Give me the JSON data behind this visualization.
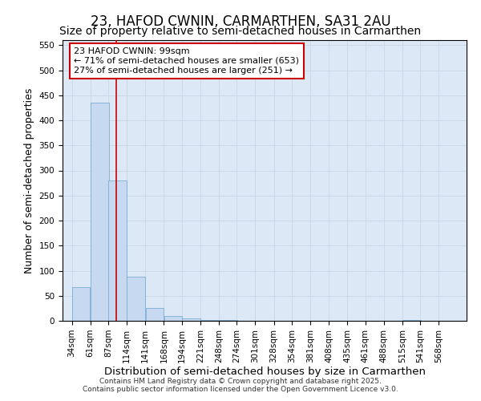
{
  "title": "23, HAFOD CWNIN, CARMARTHEN, SA31 2AU",
  "subtitle": "Size of property relative to semi-detached houses in Carmarthen",
  "xlabel": "Distribution of semi-detached houses by size in Carmarthen",
  "ylabel": "Number of semi-detached properties",
  "bins": [
    34,
    61,
    87,
    114,
    141,
    168,
    194,
    221,
    248,
    274,
    301,
    328,
    354,
    381,
    408,
    435,
    461,
    488,
    515,
    541,
    568
  ],
  "bar_heights": [
    68,
    435,
    280,
    88,
    25,
    10,
    5,
    2,
    1,
    0,
    0,
    0,
    0,
    0,
    0,
    0,
    0,
    0,
    2,
    0,
    0
  ],
  "bar_color": "#c6d9f0",
  "bar_edge_color": "#7aadd4",
  "grid_color": "#c8d8ea",
  "background_color": "#dce8f5",
  "property_size": 99,
  "red_line_color": "#cc0000",
  "annotation_line1": "23 HAFOD CWNIN: 99sqm",
  "annotation_line2": "← 71% of semi-detached houses are smaller (653)",
  "annotation_line3": "27% of semi-detached houses are larger (251) →",
  "annotation_box_color": "#ffffff",
  "annotation_border_color": "#cc0000",
  "ylim": [
    0,
    560
  ],
  "yticks": [
    0,
    50,
    100,
    150,
    200,
    250,
    300,
    350,
    400,
    450,
    500,
    550
  ],
  "footnote": "Contains HM Land Registry data © Crown copyright and database right 2025.\nContains public sector information licensed under the Open Government Licence v3.0.",
  "title_fontsize": 12,
  "subtitle_fontsize": 10,
  "xlabel_fontsize": 9.5,
  "ylabel_fontsize": 9,
  "tick_fontsize": 7.5,
  "annotation_fontsize": 8,
  "footnote_fontsize": 6.5
}
